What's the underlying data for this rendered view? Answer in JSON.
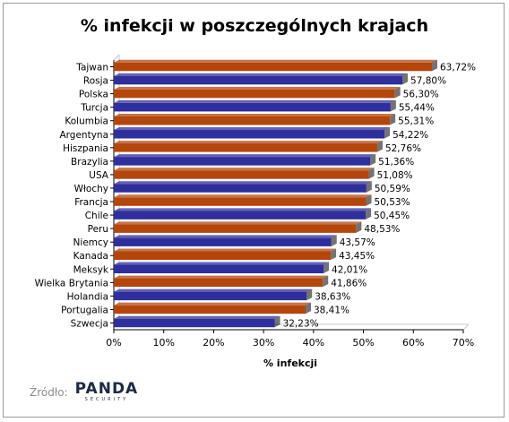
{
  "chart_data": {
    "type": "bar",
    "orientation": "horizontal",
    "title": "% infekcji w poszczególnych krajach",
    "xlabel": "% infekcji",
    "ylabel": "",
    "xlim": [
      0,
      70
    ],
    "x_ticks": [
      "0%",
      "10%",
      "20%",
      "30%",
      "40%",
      "50%",
      "60%",
      "70%"
    ],
    "categories": [
      "Tajwan",
      "Rosja",
      "Polska",
      "Turcja",
      "Kolumbia",
      "Argentyna",
      "Hiszpania",
      "Brazylia",
      "USA",
      "Włochy",
      "Francja",
      "Chile",
      "Peru",
      "Niemcy",
      "Kanada",
      "Meksyk",
      "Wielka Brytania",
      "Holandia",
      "Portugalia",
      "Szwecja"
    ],
    "values": [
      63.72,
      57.8,
      56.3,
      55.44,
      55.31,
      54.22,
      52.76,
      51.36,
      51.08,
      50.59,
      50.53,
      50.45,
      48.53,
      43.57,
      43.45,
      42.01,
      41.86,
      38.63,
      38.41,
      32.23
    ],
    "value_labels": [
      "63,72%",
      "57,80%",
      "56,30%",
      "55,44%",
      "55,31%",
      "54,22%",
      "52,76%",
      "51,36%",
      "51,08%",
      "50,59%",
      "50,53%",
      "50,45%",
      "48,53%",
      "43,57%",
      "43,45%",
      "42,01%",
      "41,86%",
      "38,63%",
      "38,41%",
      "32,23%"
    ],
    "bar_colors": [
      "#b4460c",
      "#2e2e9c",
      "#b4460c",
      "#2e2e9c",
      "#b4460c",
      "#2e2e9c",
      "#b4460c",
      "#2e2e9c",
      "#b4460c",
      "#2e2e9c",
      "#b4460c",
      "#2e2e9c",
      "#b4460c",
      "#2e2e9c",
      "#b4460c",
      "#2e2e9c",
      "#b4460c",
      "#2e2e9c",
      "#b4460c",
      "#2e2e9c"
    ],
    "grid": false,
    "legend": "none"
  },
  "source": {
    "label": "Źródło:",
    "logo_text": "PANDA",
    "logo_subtext": "SECURITY"
  },
  "colors": {
    "orange": "#b4460c",
    "blue": "#2e2e9c"
  }
}
